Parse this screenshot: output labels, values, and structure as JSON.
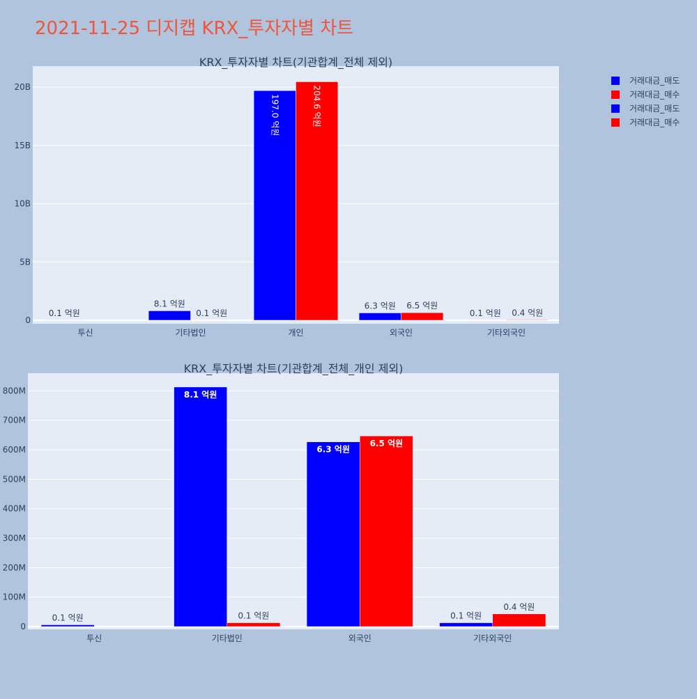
{
  "page_title": "2021-11-25 디지캡 KRX_투자자별 차트",
  "colors": {
    "page_bg": "#B0C4DE",
    "plot_bg": "#E5ECF6",
    "title": "#EF553B",
    "text": "#2A3F5F",
    "sell": "#0000FF",
    "buy": "#FF0000"
  },
  "legend": {
    "placement": "top-right",
    "entries": [
      {
        "label": "거래대금_매도",
        "color": "#0000FF"
      },
      {
        "label": "거래대금_매수",
        "color": "#FF0000"
      },
      {
        "label": "거래대금_매도",
        "color": "#0000FF"
      },
      {
        "label": "거래대금_매수",
        "color": "#FF0000"
      }
    ]
  },
  "chart_data": [
    {
      "type": "bar",
      "title": "KRX_투자자별 차트(기관합계_전체 제외)",
      "categories": [
        "투신",
        "기타법인",
        "개인",
        "외국인",
        "기타외국인"
      ],
      "ylim": [
        0,
        21800000000
      ],
      "yticks": [
        0,
        5000000000,
        10000000000,
        15000000000,
        20000000000
      ],
      "ytick_labels": [
        "0",
        "5B",
        "10B",
        "15B",
        "20B"
      ],
      "grid": true,
      "series": [
        {
          "name": "거래대금_매도",
          "color": "#0000FF",
          "values": [
            6000000,
            810000000,
            19700000000,
            630000000,
            12000000
          ],
          "labels": [
            "0.1 억원",
            "8.1 억원",
            "197.0 억원",
            "6.3 억원",
            "0.1 억원"
          ]
        },
        {
          "name": "거래대금_매수",
          "color": "#FF0000",
          "values": [
            0,
            12000000,
            20460000000,
            650000000,
            42000000
          ],
          "labels": [
            "",
            "0.1 억원",
            "204.6 억원",
            "6.5 억원",
            "0.4 억원"
          ]
        }
      ]
    },
    {
      "type": "bar",
      "title": "KRX_투자자별 차트(기관합계_전체_개인 제외)",
      "categories": [
        "투신",
        "기타법인",
        "외국인",
        "기타외국인"
      ],
      "ylim": [
        0,
        860000000
      ],
      "yticks": [
        0,
        100000000,
        200000000,
        300000000,
        400000000,
        500000000,
        600000000,
        700000000,
        800000000
      ],
      "ytick_labels": [
        "0",
        "100M",
        "200M",
        "300M",
        "400M",
        "500M",
        "600M",
        "700M",
        "800M"
      ],
      "grid": true,
      "series": [
        {
          "name": "거래대금_매도",
          "color": "#0000FF",
          "values": [
            6000000,
            813000000,
            627000000,
            13000000
          ],
          "labels": [
            "0.1 억원",
            "8.1 억원",
            "6.3 억원",
            "0.1 억원"
          ]
        },
        {
          "name": "거래대금_매수",
          "color": "#FF0000",
          "values": [
            0,
            13000000,
            647000000,
            43000000
          ],
          "labels": [
            "",
            "0.1 억원",
            "6.5 억원",
            "0.4 억원"
          ]
        }
      ]
    }
  ]
}
